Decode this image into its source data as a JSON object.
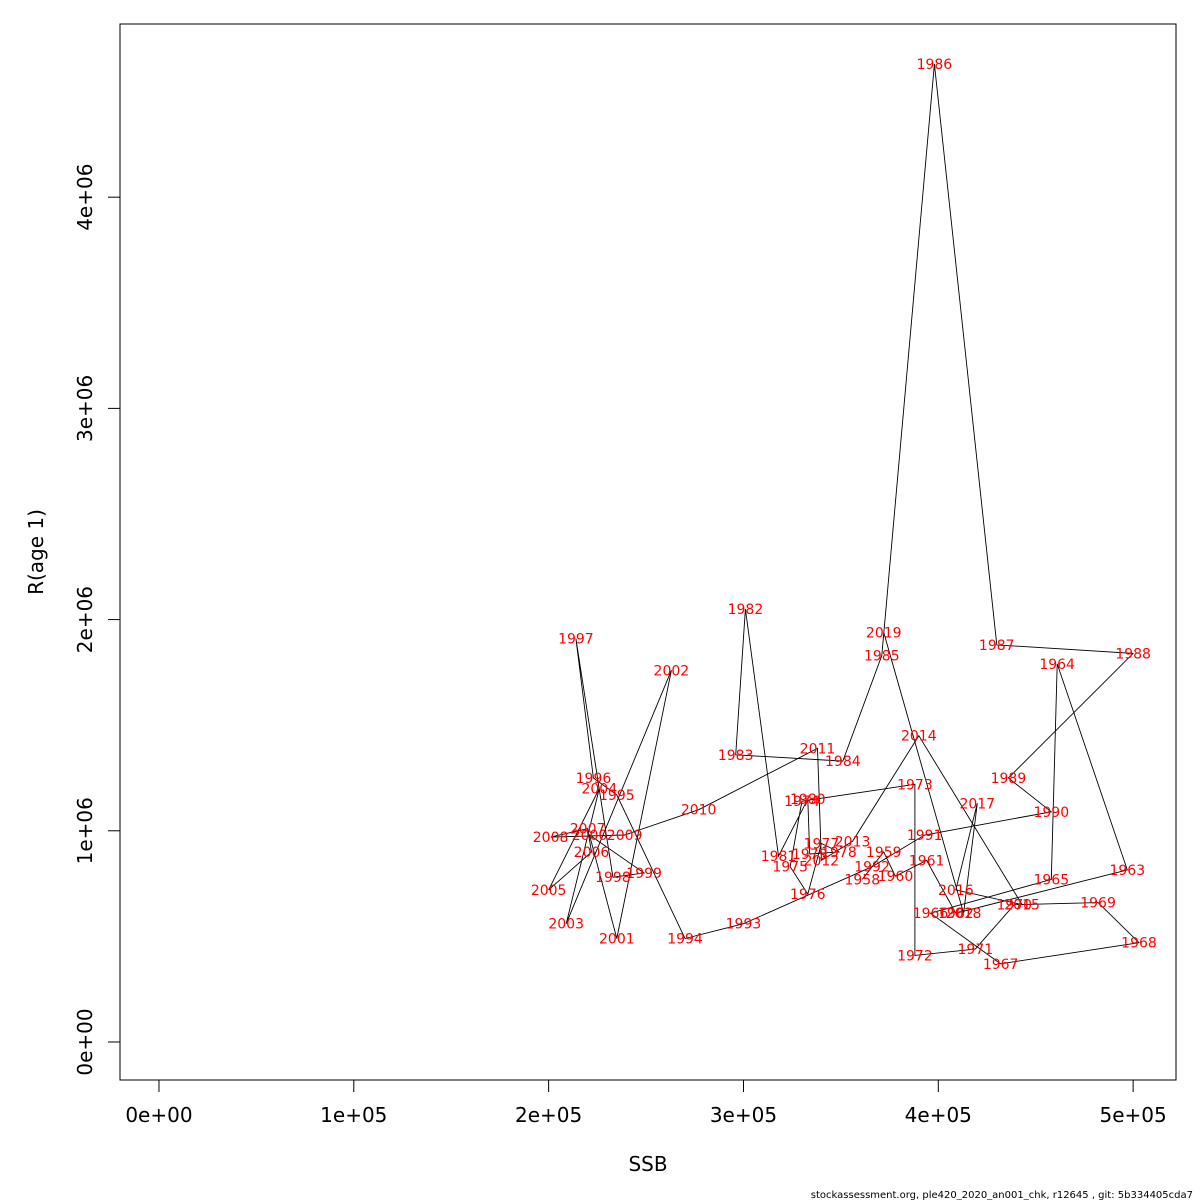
{
  "chart_data": {
    "type": "line",
    "title": "",
    "xlabel": "SSB",
    "ylabel": "R(age 1)",
    "xlim": [
      -20000,
      522000
    ],
    "ylim": [
      -180000,
      4820000
    ],
    "x_ticks": [
      0,
      100000,
      200000,
      300000,
      400000,
      500000
    ],
    "x_tick_labels": [
      "0e+00",
      "1e+05",
      "2e+05",
      "3e+05",
      "4e+05",
      "5e+05"
    ],
    "y_ticks": [
      0,
      1000000,
      2000000,
      3000000,
      4000000
    ],
    "y_tick_labels": [
      "0e+00",
      "1e+06",
      "2e+06",
      "3e+06",
      "4e+06"
    ],
    "label_color": "#ff0000",
    "line_color": "#000000",
    "grid": false,
    "footer": "stockassessment.org, ple420_2020_an001_chk, r12645 , git: 5b334405cda7",
    "points": [
      {
        "year": "1958",
        "x": 361000,
        "y": 770000
      },
      {
        "year": "1959",
        "x": 372000,
        "y": 900000
      },
      {
        "year": "1960",
        "x": 378000,
        "y": 785000
      },
      {
        "year": "1961",
        "x": 394000,
        "y": 860000
      },
      {
        "year": "1962",
        "x": 409000,
        "y": 610000
      },
      {
        "year": "1963",
        "x": 497000,
        "y": 815000
      },
      {
        "year": "1964",
        "x": 461000,
        "y": 1790000
      },
      {
        "year": "1965",
        "x": 458000,
        "y": 770000
      },
      {
        "year": "1966",
        "x": 396000,
        "y": 610000
      },
      {
        "year": "1967",
        "x": 432000,
        "y": 370000
      },
      {
        "year": "1968",
        "x": 503000,
        "y": 470000
      },
      {
        "year": "1969",
        "x": 482000,
        "y": 660000
      },
      {
        "year": "1970",
        "x": 439000,
        "y": 650000
      },
      {
        "year": "1971",
        "x": 419000,
        "y": 440000
      },
      {
        "year": "1972",
        "x": 388000,
        "y": 410000
      },
      {
        "year": "1973",
        "x": 388000,
        "y": 1220000
      },
      {
        "year": "1974",
        "x": 330000,
        "y": 1140000
      },
      {
        "year": "1975",
        "x": 324000,
        "y": 830000
      },
      {
        "year": "1976",
        "x": 333000,
        "y": 700000
      },
      {
        "year": "1977",
        "x": 340000,
        "y": 940000
      },
      {
        "year": "1978",
        "x": 349000,
        "y": 900000
      },
      {
        "year": "1979",
        "x": 334000,
        "y": 890000
      },
      {
        "year": "1980",
        "x": 333000,
        "y": 1150000
      },
      {
        "year": "1981",
        "x": 318000,
        "y": 880000
      },
      {
        "year": "1982",
        "x": 301000,
        "y": 2050000
      },
      {
        "year": "1983",
        "x": 296000,
        "y": 1360000
      },
      {
        "year": "1984",
        "x": 351000,
        "y": 1330000
      },
      {
        "year": "1985",
        "x": 371000,
        "y": 1830000
      },
      {
        "year": "1986",
        "x": 398000,
        "y": 4630000
      },
      {
        "year": "1987",
        "x": 430000,
        "y": 1880000
      },
      {
        "year": "1988",
        "x": 500000,
        "y": 1840000
      },
      {
        "year": "1989",
        "x": 436000,
        "y": 1250000
      },
      {
        "year": "1990",
        "x": 458000,
        "y": 1090000
      },
      {
        "year": "1991",
        "x": 393000,
        "y": 980000
      },
      {
        "year": "1992",
        "x": 366000,
        "y": 830000
      },
      {
        "year": "1993",
        "x": 300000,
        "y": 560000
      },
      {
        "year": "1994",
        "x": 270000,
        "y": 490000
      },
      {
        "year": "1995",
        "x": 235000,
        "y": 1170000
      },
      {
        "year": "1996",
        "x": 223000,
        "y": 1250000
      },
      {
        "year": "1997",
        "x": 214000,
        "y": 1910000
      },
      {
        "year": "1998",
        "x": 233000,
        "y": 780000
      },
      {
        "year": "1999",
        "x": 249000,
        "y": 800000
      },
      {
        "year": "2000",
        "x": 221000,
        "y": 980000
      },
      {
        "year": "2001",
        "x": 235000,
        "y": 490000
      },
      {
        "year": "2002",
        "x": 263000,
        "y": 1760000
      },
      {
        "year": "2003",
        "x": 209000,
        "y": 560000
      },
      {
        "year": "2004",
        "x": 226000,
        "y": 1200000
      },
      {
        "year": "2005",
        "x": 200000,
        "y": 720000
      },
      {
        "year": "2006",
        "x": 222000,
        "y": 900000
      },
      {
        "year": "2007",
        "x": 220000,
        "y": 1010000
      },
      {
        "year": "2008",
        "x": 201000,
        "y": 970000
      },
      {
        "year": "2009",
        "x": 239000,
        "y": 980000
      },
      {
        "year": "2010",
        "x": 277000,
        "y": 1100000
      },
      {
        "year": "2011",
        "x": 338000,
        "y": 1390000
      },
      {
        "year": "2012",
        "x": 340000,
        "y": 860000
      },
      {
        "year": "2013",
        "x": 356000,
        "y": 950000
      },
      {
        "year": "2014",
        "x": 390000,
        "y": 1450000
      },
      {
        "year": "2015",
        "x": 443000,
        "y": 650000
      },
      {
        "year": "2016",
        "x": 409000,
        "y": 720000
      },
      {
        "year": "2017",
        "x": 420000,
        "y": 1130000
      },
      {
        "year": "2018",
        "x": 413000,
        "y": 610000
      },
      {
        "year": "2019",
        "x": 372000,
        "y": 1940000
      }
    ]
  }
}
